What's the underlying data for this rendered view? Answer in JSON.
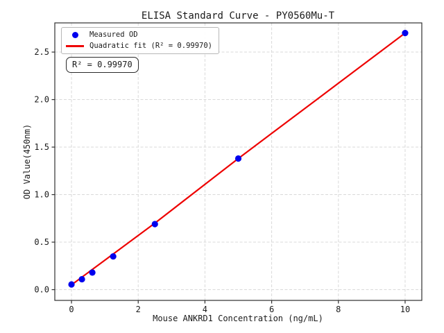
{
  "chart_data": {
    "type": "scatter",
    "title": "ELISA Standard Curve - PY0560Mu-T",
    "xlabel": "Mouse ANKRD1 Concentration (ng/mL)",
    "ylabel": "OD Value(450nm)",
    "xlim": [
      -0.5,
      10.5
    ],
    "ylim": [
      -0.113,
      2.807
    ],
    "xticks": {
      "values": [
        0,
        2,
        4,
        6,
        8,
        10
      ],
      "labels": [
        "0",
        "2",
        "4",
        "6",
        "8",
        "10"
      ]
    },
    "yticks": {
      "values": [
        0.0,
        0.5,
        1.0,
        1.5,
        2.0,
        2.5
      ],
      "labels": [
        "0.0",
        "0.5",
        "1.0",
        "1.5",
        "2.0",
        "2.5"
      ]
    },
    "grid": true,
    "legend_position": "upper left",
    "series": [
      {
        "name": "Measured OD",
        "kind": "scatter",
        "marker": "circle",
        "color": "#0000ee",
        "x": [
          0,
          0.3125,
          0.625,
          1.25,
          2.5,
          5,
          10
        ],
        "y": [
          0.055,
          0.11,
          0.18,
          0.35,
          0.69,
          1.38,
          2.7
        ]
      },
      {
        "name": "Quadratic fit (R² = 0.99970)",
        "kind": "line",
        "color": "#ee0000",
        "x": [
          0,
          2.5,
          5,
          7.5,
          10
        ],
        "y": [
          0.05,
          0.7,
          1.38,
          2.04,
          2.7
        ]
      }
    ],
    "annotation": "R² = 0.99970"
  }
}
